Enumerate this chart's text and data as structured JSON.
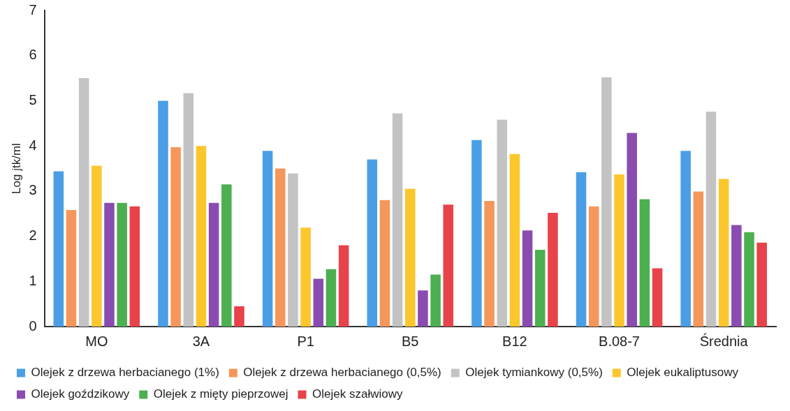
{
  "chart_data": {
    "type": "bar",
    "ylabel": "Log jtk/ml",
    "categories": [
      "MO",
      "3A",
      "P1",
      "B5",
      "B12",
      "B.08-7",
      "Średnia"
    ],
    "series": [
      {
        "name": "Olejek z drzewa herbacianego (1%)",
        "color": "#4a9ee6",
        "values": [
          3.44,
          5.0,
          3.89,
          3.7,
          4.13,
          3.42,
          3.89
        ]
      },
      {
        "name": "Olejek z drzewa herbacianego (0,5%)",
        "color": "#f5975a",
        "values": [
          2.58,
          3.97,
          3.5,
          2.8,
          2.78,
          2.66,
          2.99
        ]
      },
      {
        "name": "Olejek tymiankowy (0,5%)",
        "color": "#c3c3c3",
        "values": [
          5.5,
          5.17,
          3.39,
          4.72,
          4.58,
          5.52,
          4.76
        ]
      },
      {
        "name": "Olejek eukaliptusowy",
        "color": "#fcc62d",
        "values": [
          3.56,
          4.0,
          2.19,
          3.05,
          3.82,
          3.37,
          3.27
        ]
      },
      {
        "name": "Olejek goździkowy",
        "color": "#8a4cb0",
        "values": [
          2.74,
          2.74,
          1.06,
          0.8,
          2.13,
          4.29,
          2.25
        ]
      },
      {
        "name": "Olejek z mięty pieprzowej",
        "color": "#4caf50",
        "values": [
          2.74,
          3.15,
          1.27,
          1.15,
          1.7,
          2.82,
          2.09
        ]
      },
      {
        "name": "Olejek szałwiowy",
        "color": "#e8424a",
        "values": [
          2.66,
          0.45,
          1.8,
          2.7,
          2.52,
          1.29,
          1.86
        ]
      }
    ],
    "ylim": [
      0,
      7
    ],
    "yticks": [
      0,
      1,
      2,
      3,
      4,
      5,
      6,
      7
    ],
    "grid": false,
    "legend": "bottom"
  }
}
